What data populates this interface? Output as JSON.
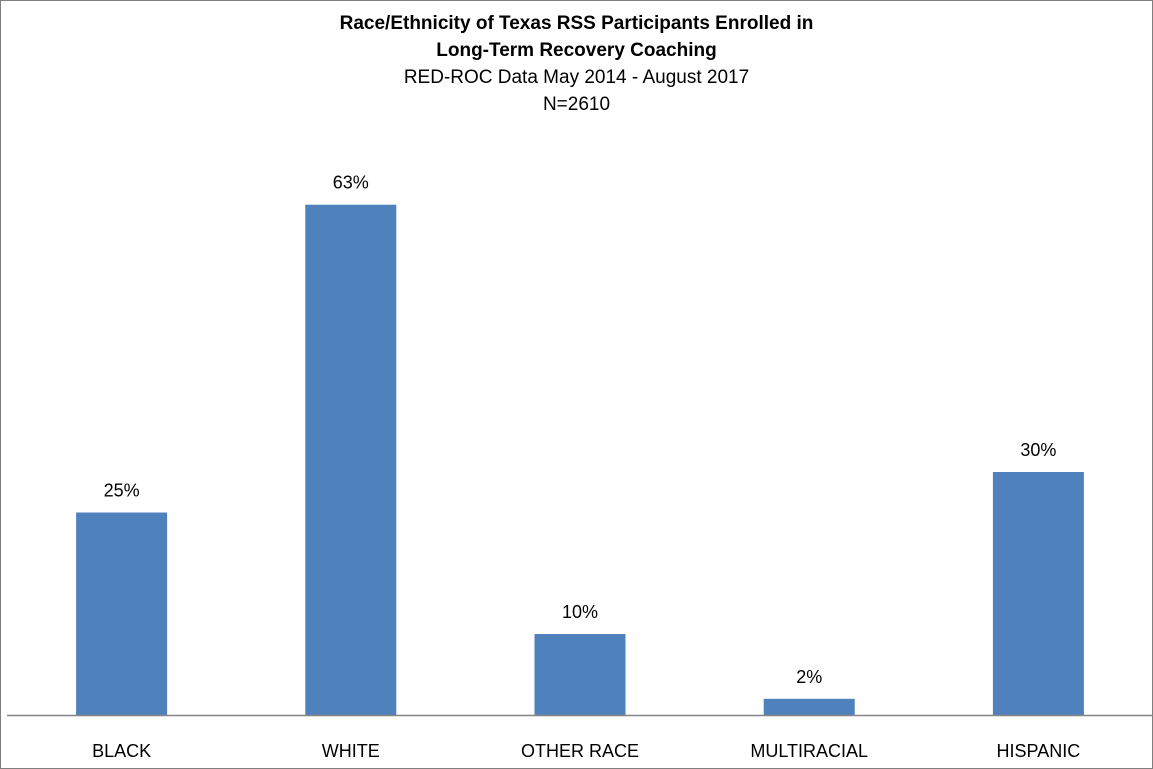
{
  "chart_data": {
    "type": "bar",
    "title": "Race/Ethnicity of Texas RSS Participants Enrolled in Long-Term Recovery Coaching",
    "title_lines": [
      "Race/Ethnicity of Texas RSS Participants Enrolled in",
      "Long-Term Recovery Coaching"
    ],
    "subtitle_lines": [
      "RED-ROC Data May 2014 - August 2017",
      "N=2610"
    ],
    "categories": [
      "BLACK",
      "WHITE",
      "OTHER RACE",
      "MULTIRACIAL",
      "HISPANIC"
    ],
    "values": [
      25,
      63,
      10,
      2,
      30
    ],
    "data_labels": [
      "25%",
      "63%",
      "10%",
      "2%",
      "30%"
    ],
    "unit": "%",
    "xlabel": "",
    "ylabel": "",
    "ylim": [
      0,
      70
    ],
    "grid": false,
    "legend": "none",
    "bar_color": "#4f81bd",
    "axis_color": "#868686"
  }
}
